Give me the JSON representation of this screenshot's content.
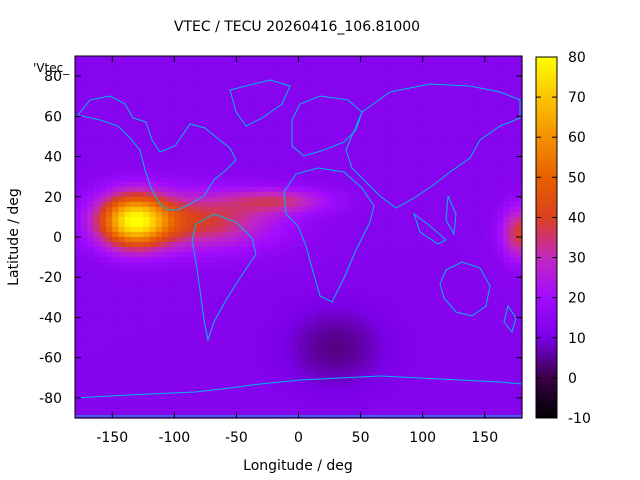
{
  "chart_data": {
    "type": "heatmap",
    "title": "VTEC / TECU 20260416_106.81000",
    "xlabel": "Longitude / deg",
    "ylabel": "Latitude / deg",
    "key_label": "'Vtec_",
    "xlim": [
      -180,
      180
    ],
    "ylim": [
      -90,
      90
    ],
    "x_ticks": [
      -150,
      -100,
      -50,
      0,
      50,
      100,
      150
    ],
    "y_ticks": [
      80,
      60,
      40,
      20,
      0,
      -20,
      -40,
      -60,
      -80
    ],
    "colorbar": {
      "min": -10,
      "max": 80,
      "ticks": [
        80,
        70,
        60,
        50,
        40,
        30,
        20,
        10,
        0,
        -10
      ]
    },
    "grid": false,
    "vtec_features": [
      {
        "name": "background",
        "value": 13
      },
      {
        "name": "pacific-peak",
        "lon": -133,
        "lat": 8,
        "value": 70
      },
      {
        "name": "tropical-band",
        "lon": -80,
        "lat": 8,
        "value": 42
      },
      {
        "name": "atlantic-arm",
        "lon": -15,
        "lat": 18,
        "value": 38
      },
      {
        "name": "eastern-edge",
        "lon": 178,
        "lat": 2,
        "value": 40
      },
      {
        "name": "antarctic-low",
        "lon": 30,
        "lat": -55,
        "value": 4
      }
    ]
  }
}
